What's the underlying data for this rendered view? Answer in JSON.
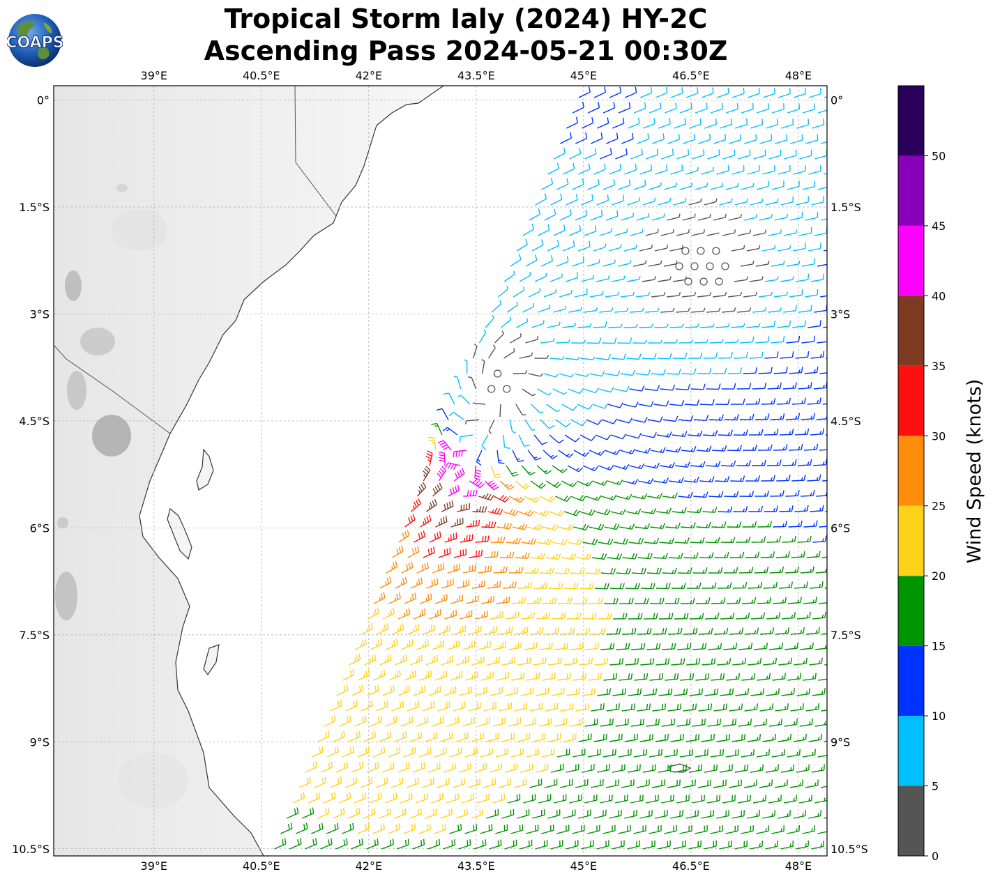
{
  "title": {
    "line1": "Tropical Storm Ialy (2024) HY-2C",
    "line2": "Ascending Pass 2024-05-21 00:30Z"
  },
  "logo": {
    "text": "COAPS",
    "icon": "globe-logo-icon"
  },
  "map_axes": {
    "lon_ticks": [
      "39°E",
      "40.5°E",
      "42°E",
      "43.5°E",
      "45°E",
      "46.5°E",
      "48°E"
    ],
    "lat_ticks": [
      "0°",
      "1.5°S",
      "3°S",
      "4.5°S",
      "6°S",
      "7.5°S",
      "9°S",
      "10.5°S"
    ],
    "lon_range": [
      37.6,
      48.4
    ],
    "lat_range": [
      0.2,
      -10.6
    ],
    "gridlines": true
  },
  "colorbar": {
    "label": "Wind Speed (knots)",
    "ticks": [
      "0",
      "5",
      "10",
      "15",
      "20",
      "25",
      "30",
      "35",
      "40",
      "45",
      "50"
    ],
    "bins": [
      {
        "min": 0,
        "max": 5,
        "color": "#555555"
      },
      {
        "min": 5,
        "max": 10,
        "color": "#00bfff"
      },
      {
        "min": 10,
        "max": 15,
        "color": "#0033ff"
      },
      {
        "min": 15,
        "max": 20,
        "color": "#009400"
      },
      {
        "min": 20,
        "max": 25,
        "color": "#ffd21a"
      },
      {
        "min": 25,
        "max": 30,
        "color": "#ff8c0a"
      },
      {
        "min": 30,
        "max": 35,
        "color": "#ff1010"
      },
      {
        "min": 35,
        "max": 40,
        "color": "#7f3b22"
      },
      {
        "min": 40,
        "max": 45,
        "color": "#ff00ff"
      },
      {
        "min": 45,
        "max": 50,
        "color": "#8800b8"
      },
      {
        "min": 50,
        "max": 55,
        "color": "#2a005a"
      }
    ]
  }
}
